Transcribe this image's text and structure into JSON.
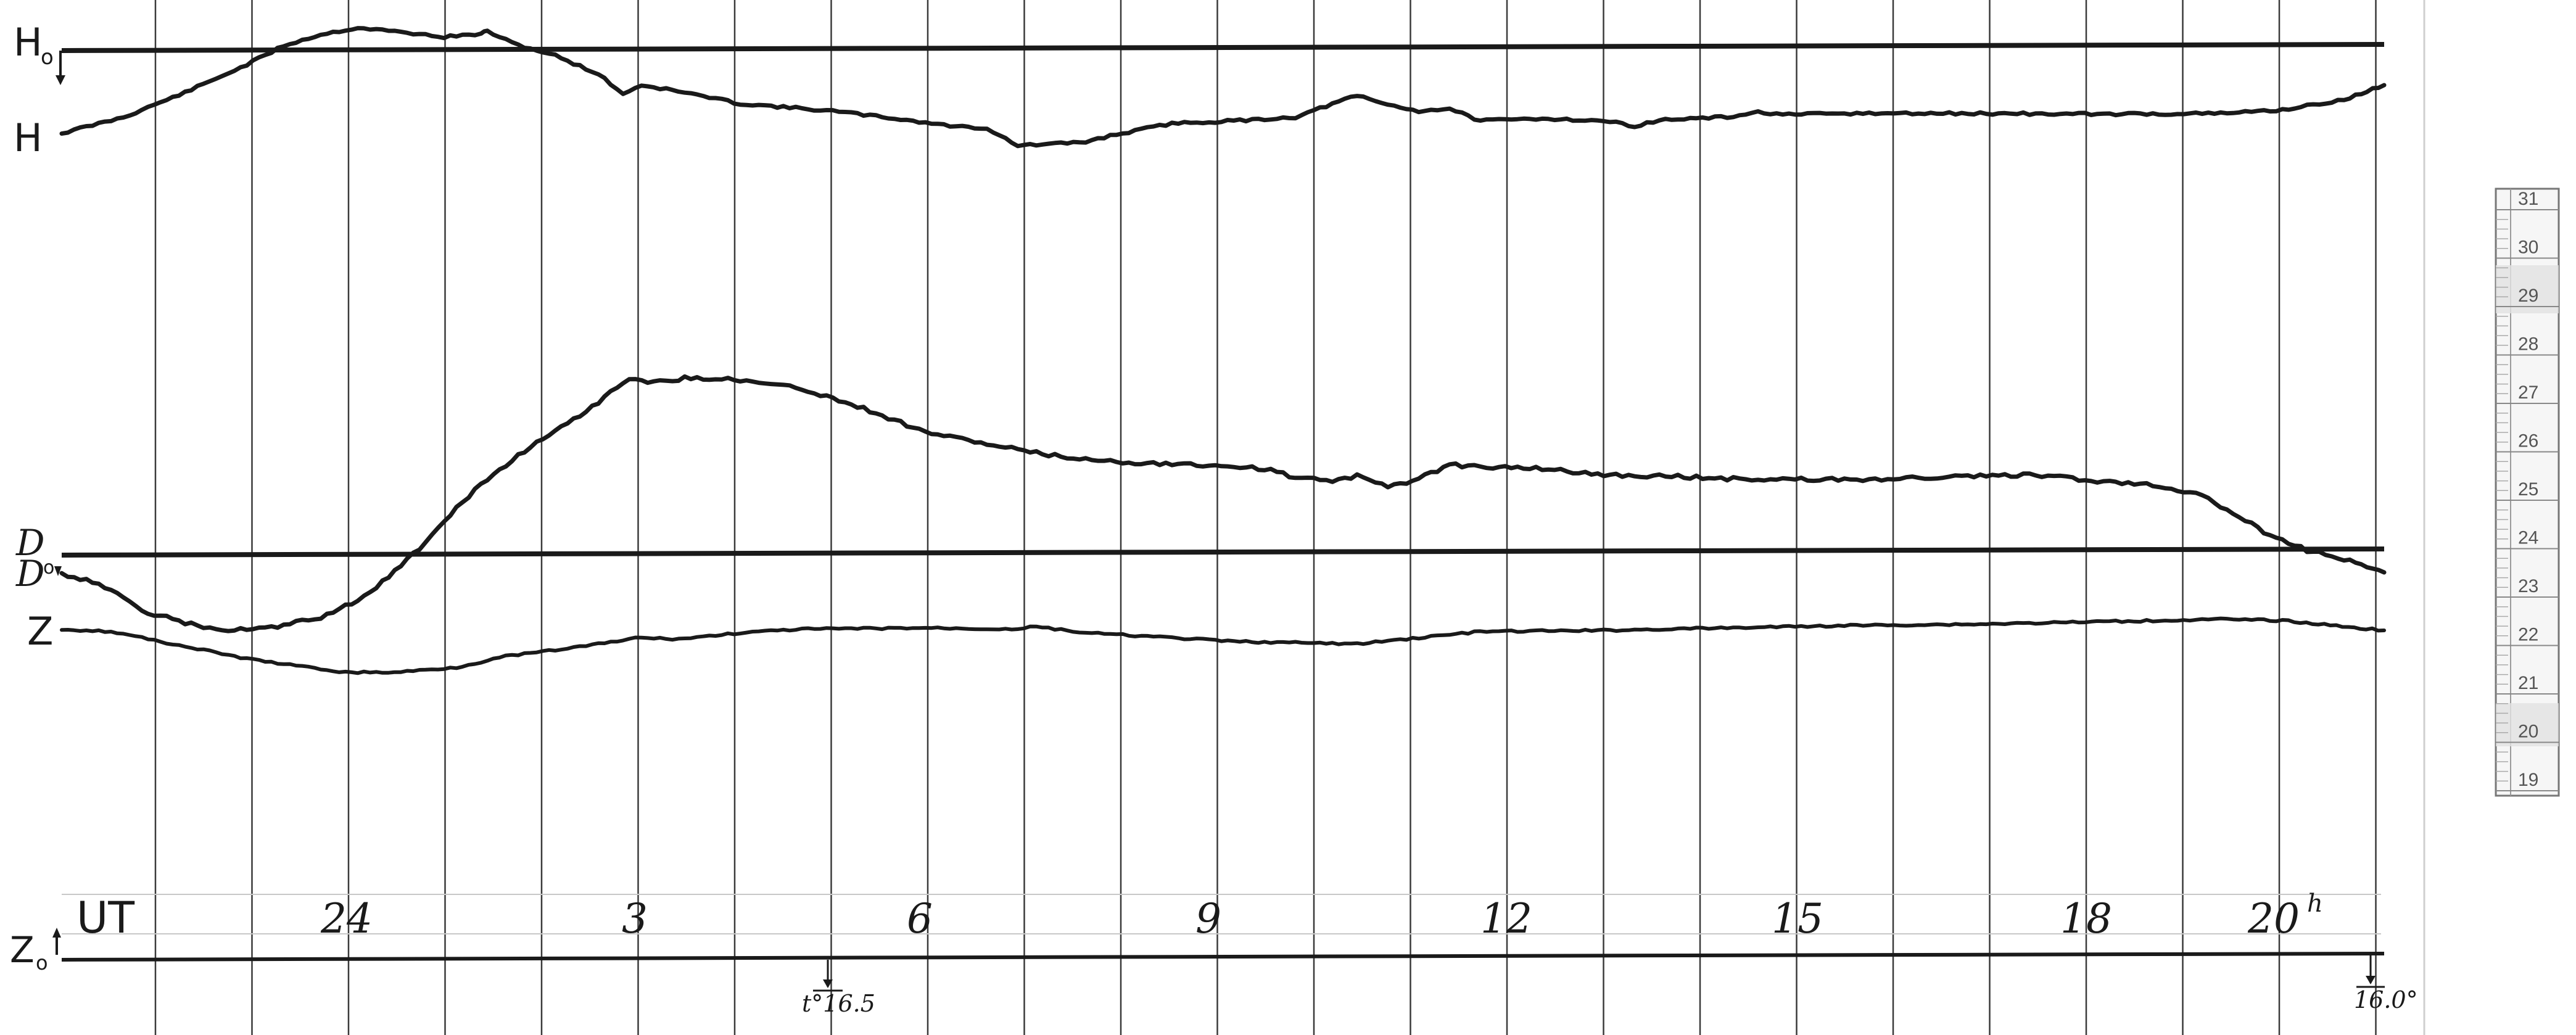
{
  "trace_labels": {
    "h_baseline": "H",
    "h_baseline_sub": "o",
    "h_trace": "H",
    "d_baseline": "D",
    "d_baseline_sub": "o",
    "d_trace": "D",
    "z_trace": "Z",
    "z_baseline": "Z",
    "z_baseline_sub": "o"
  },
  "time_axis": {
    "label": "UT",
    "ticks": [
      "24",
      "3",
      "6",
      "9",
      "12",
      "15",
      "18",
      "20"
    ],
    "last_tick_suffix": "h"
  },
  "temperature_marks": {
    "start": "t°16.5",
    "end": "16.0°"
  },
  "scale_ruler": {
    "ticks": [
      "31",
      "30",
      "29",
      "28",
      "27",
      "26",
      "25",
      "24",
      "23",
      "22",
      "21",
      "20",
      "19"
    ]
  },
  "colors": {
    "paper": "#ffffff",
    "ink": "#1a1a1a",
    "grid": "#3a3a3a",
    "ruler": "#777777"
  }
}
